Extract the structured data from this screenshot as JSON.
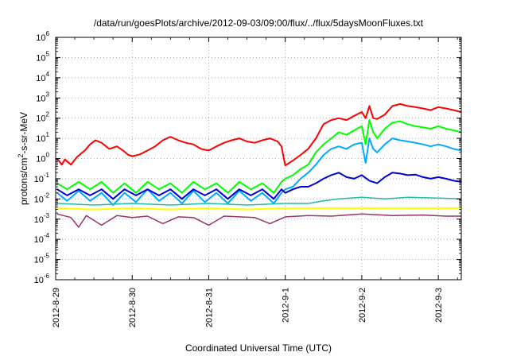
{
  "chart_data": {
    "type": "line",
    "title": "/data/run/goesPlots/archive/2012-09-03/09:00/flux/../flux/5daysMoonFluxes.txt",
    "xlabel": "Coordinated Universal Time (UTC)",
    "ylabel_base": "protons/cm",
    "ylabel_sup": "2",
    "ylabel_rest": "-s-sr-MeV",
    "yscale": "log",
    "ylim_exp": [
      -6,
      6
    ],
    "y_ticks": [
      {
        "exp": -6,
        "text": "-6"
      },
      {
        "exp": -5,
        "text": "-5"
      },
      {
        "exp": -4,
        "text": "-4"
      },
      {
        "exp": -3,
        "text": "-3"
      },
      {
        "exp": -2,
        "text": "-2"
      },
      {
        "exp": -1,
        "text": "-1"
      },
      {
        "exp": 0,
        "text": "0"
      },
      {
        "exp": 1,
        "text": "1"
      },
      {
        "exp": 2,
        "text": "2"
      },
      {
        "exp": 3,
        "text": "3"
      },
      {
        "exp": 4,
        "text": "4"
      },
      {
        "exp": 5,
        "text": "5"
      },
      {
        "exp": 6,
        "text": "6"
      }
    ],
    "y_tick_base": "10",
    "xlim_days": [
      0,
      5.3
    ],
    "x_ticks": [
      {
        "day": 0,
        "label": "2012-8-29"
      },
      {
        "day": 1,
        "label": "2012-8-30"
      },
      {
        "day": 2,
        "label": "2012-8-31"
      },
      {
        "day": 3,
        "label": "2012-9-1"
      },
      {
        "day": 4,
        "label": "2012-9-2"
      },
      {
        "day": 5,
        "label": "2012-9-3"
      }
    ],
    "series": [
      {
        "color": "#ff0000",
        "width": 2,
        "points": [
          [
            0.02,
            1.0
          ],
          [
            0.08,
            0.5
          ],
          [
            0.12,
            0.9
          ],
          [
            0.2,
            0.5
          ],
          [
            0.28,
            1.2
          ],
          [
            0.38,
            2.5
          ],
          [
            0.45,
            5.0
          ],
          [
            0.52,
            8.0
          ],
          [
            0.6,
            6.0
          ],
          [
            0.7,
            3.0
          ],
          [
            0.8,
            4.0
          ],
          [
            0.88,
            2.5
          ],
          [
            0.95,
            1.5
          ],
          [
            1.0,
            1.3
          ],
          [
            1.1,
            1.6
          ],
          [
            1.2,
            2.5
          ],
          [
            1.3,
            4.0
          ],
          [
            1.4,
            8.0
          ],
          [
            1.5,
            12.0
          ],
          [
            1.6,
            8.0
          ],
          [
            1.7,
            6.0
          ],
          [
            1.8,
            5.0
          ],
          [
            1.9,
            3.0
          ],
          [
            2.0,
            2.5
          ],
          [
            2.1,
            4.0
          ],
          [
            2.2,
            6.0
          ],
          [
            2.3,
            8.0
          ],
          [
            2.4,
            10.0
          ],
          [
            2.5,
            7.0
          ],
          [
            2.6,
            6.0
          ],
          [
            2.7,
            8.0
          ],
          [
            2.8,
            10.0
          ],
          [
            2.9,
            7.0
          ],
          [
            2.95,
            4.0
          ],
          [
            3.0,
            0.45
          ],
          [
            3.05,
            0.6
          ],
          [
            3.1,
            0.8
          ],
          [
            3.2,
            1.5
          ],
          [
            3.3,
            3.0
          ],
          [
            3.4,
            10.0
          ],
          [
            3.5,
            50.0
          ],
          [
            3.6,
            80.0
          ],
          [
            3.7,
            100.0
          ],
          [
            3.8,
            80.0
          ],
          [
            3.9,
            130.0
          ],
          [
            4.0,
            200.0
          ],
          [
            4.05,
            100.0
          ],
          [
            4.1,
            400.0
          ],
          [
            4.15,
            100.0
          ],
          [
            4.2,
            90.0
          ],
          [
            4.3,
            150.0
          ],
          [
            4.4,
            400.0
          ],
          [
            4.5,
            500.0
          ],
          [
            4.6,
            400.0
          ],
          [
            4.7,
            350.0
          ],
          [
            4.8,
            300.0
          ],
          [
            4.9,
            250.0
          ],
          [
            5.0,
            350.0
          ],
          [
            5.1,
            300.0
          ],
          [
            5.2,
            250.0
          ],
          [
            5.3,
            200.0
          ]
        ]
      },
      {
        "color": "#00ff00",
        "width": 2,
        "points": [
          [
            0.02,
            0.06
          ],
          [
            0.15,
            0.03
          ],
          [
            0.3,
            0.07
          ],
          [
            0.45,
            0.03
          ],
          [
            0.6,
            0.07
          ],
          [
            0.75,
            0.02
          ],
          [
            0.9,
            0.06
          ],
          [
            1.05,
            0.02
          ],
          [
            1.2,
            0.07
          ],
          [
            1.35,
            0.03
          ],
          [
            1.5,
            0.06
          ],
          [
            1.65,
            0.02
          ],
          [
            1.8,
            0.07
          ],
          [
            1.95,
            0.03
          ],
          [
            2.1,
            0.06
          ],
          [
            2.25,
            0.02
          ],
          [
            2.4,
            0.07
          ],
          [
            2.55,
            0.03
          ],
          [
            2.7,
            0.06
          ],
          [
            2.85,
            0.02
          ],
          [
            2.95,
            0.07
          ],
          [
            3.0,
            0.1
          ],
          [
            3.1,
            0.15
          ],
          [
            3.2,
            0.3
          ],
          [
            3.3,
            0.5
          ],
          [
            3.4,
            2.0
          ],
          [
            3.5,
            5.0
          ],
          [
            3.6,
            10.0
          ],
          [
            3.7,
            20.0
          ],
          [
            3.8,
            15.0
          ],
          [
            3.9,
            25.0
          ],
          [
            4.0,
            40.0
          ],
          [
            4.05,
            5.0
          ],
          [
            4.1,
            80.0
          ],
          [
            4.15,
            20.0
          ],
          [
            4.2,
            10.0
          ],
          [
            4.3,
            30.0
          ],
          [
            4.4,
            60.0
          ],
          [
            4.5,
            70.0
          ],
          [
            4.6,
            50.0
          ],
          [
            4.7,
            40.0
          ],
          [
            4.8,
            35.0
          ],
          [
            4.9,
            30.0
          ],
          [
            5.0,
            40.0
          ],
          [
            5.1,
            30.0
          ],
          [
            5.2,
            25.0
          ],
          [
            5.3,
            20.0
          ]
        ]
      },
      {
        "color": "#00aaff",
        "width": 2,
        "points": [
          [
            0.02,
            0.02
          ],
          [
            0.15,
            0.008
          ],
          [
            0.3,
            0.025
          ],
          [
            0.45,
            0.008
          ],
          [
            0.6,
            0.02
          ],
          [
            0.75,
            0.005
          ],
          [
            0.9,
            0.02
          ],
          [
            1.05,
            0.007
          ],
          [
            1.2,
            0.03
          ],
          [
            1.35,
            0.008
          ],
          [
            1.5,
            0.02
          ],
          [
            1.65,
            0.006
          ],
          [
            1.8,
            0.025
          ],
          [
            1.95,
            0.007
          ],
          [
            2.1,
            0.02
          ],
          [
            2.25,
            0.006
          ],
          [
            2.4,
            0.025
          ],
          [
            2.55,
            0.008
          ],
          [
            2.7,
            0.02
          ],
          [
            2.85,
            0.006
          ],
          [
            2.95,
            0.02
          ],
          [
            3.0,
            0.03
          ],
          [
            3.1,
            0.04
          ],
          [
            3.2,
            0.1
          ],
          [
            3.3,
            0.2
          ],
          [
            3.4,
            0.5
          ],
          [
            3.5,
            1.5
          ],
          [
            3.6,
            3.0
          ],
          [
            3.7,
            4.0
          ],
          [
            3.8,
            3.0
          ],
          [
            3.9,
            5.0
          ],
          [
            4.0,
            6.0
          ],
          [
            4.05,
            0.6
          ],
          [
            4.1,
            10.0
          ],
          [
            4.15,
            3.0
          ],
          [
            4.2,
            2.0
          ],
          [
            4.3,
            5.0
          ],
          [
            4.4,
            10.0
          ],
          [
            4.5,
            8.0
          ],
          [
            4.6,
            7.0
          ],
          [
            4.7,
            6.0
          ],
          [
            4.8,
            5.0
          ],
          [
            4.9,
            4.0
          ],
          [
            5.0,
            5.0
          ],
          [
            5.1,
            4.0
          ],
          [
            5.2,
            3.0
          ],
          [
            5.3,
            2.5
          ]
        ]
      },
      {
        "color": "#0000dd",
        "width": 2,
        "points": [
          [
            0.02,
            0.03
          ],
          [
            0.15,
            0.015
          ],
          [
            0.3,
            0.03
          ],
          [
            0.45,
            0.015
          ],
          [
            0.6,
            0.03
          ],
          [
            0.75,
            0.01
          ],
          [
            0.9,
            0.03
          ],
          [
            1.05,
            0.015
          ],
          [
            1.2,
            0.03
          ],
          [
            1.35,
            0.015
          ],
          [
            1.5,
            0.03
          ],
          [
            1.65,
            0.01
          ],
          [
            1.8,
            0.03
          ],
          [
            1.95,
            0.015
          ],
          [
            2.1,
            0.03
          ],
          [
            2.25,
            0.01
          ],
          [
            2.4,
            0.03
          ],
          [
            2.55,
            0.015
          ],
          [
            2.7,
            0.03
          ],
          [
            2.85,
            0.01
          ],
          [
            2.95,
            0.03
          ],
          [
            3.0,
            0.02
          ],
          [
            3.1,
            0.03
          ],
          [
            3.2,
            0.04
          ],
          [
            3.3,
            0.04
          ],
          [
            3.4,
            0.06
          ],
          [
            3.5,
            0.1
          ],
          [
            3.6,
            0.15
          ],
          [
            3.7,
            0.2
          ],
          [
            3.8,
            0.12
          ],
          [
            3.9,
            0.1
          ],
          [
            4.0,
            0.15
          ],
          [
            4.1,
            0.08
          ],
          [
            4.2,
            0.06
          ],
          [
            4.3,
            0.12
          ],
          [
            4.4,
            0.2
          ],
          [
            4.5,
            0.18
          ],
          [
            4.6,
            0.15
          ],
          [
            4.7,
            0.16
          ],
          [
            4.8,
            0.12
          ],
          [
            4.9,
            0.1
          ],
          [
            5.0,
            0.12
          ],
          [
            5.1,
            0.1
          ],
          [
            5.2,
            0.08
          ],
          [
            5.3,
            0.07
          ]
        ]
      },
      {
        "color": "#22bbaa",
        "width": 1.5,
        "points": [
          [
            0.02,
            0.006
          ],
          [
            0.5,
            0.005
          ],
          [
            1.0,
            0.006
          ],
          [
            1.5,
            0.005
          ],
          [
            2.0,
            0.006
          ],
          [
            2.5,
            0.005
          ],
          [
            3.0,
            0.006
          ],
          [
            3.3,
            0.006
          ],
          [
            3.5,
            0.008
          ],
          [
            3.7,
            0.01
          ],
          [
            4.0,
            0.012
          ],
          [
            4.3,
            0.01
          ],
          [
            4.6,
            0.012
          ],
          [
            5.0,
            0.011
          ],
          [
            5.3,
            0.01
          ]
        ]
      },
      {
        "color": "#ffff00",
        "width": 2,
        "points": [
          [
            0.02,
            0.0035
          ],
          [
            0.5,
            0.003
          ],
          [
            1.0,
            0.0035
          ],
          [
            1.5,
            0.003
          ],
          [
            2.0,
            0.0035
          ],
          [
            2.5,
            0.003
          ],
          [
            3.0,
            0.0035
          ],
          [
            3.5,
            0.0035
          ],
          [
            4.0,
            0.0035
          ],
          [
            4.5,
            0.0035
          ],
          [
            5.0,
            0.0035
          ],
          [
            5.3,
            0.0035
          ]
        ]
      },
      {
        "color": "#993366",
        "width": 1.5,
        "points": [
          [
            0.02,
            0.0018
          ],
          [
            0.2,
            0.0012
          ],
          [
            0.3,
            0.0004
          ],
          [
            0.4,
            0.0015
          ],
          [
            0.6,
            0.0005
          ],
          [
            0.8,
            0.0015
          ],
          [
            1.0,
            0.0012
          ],
          [
            1.2,
            0.0014
          ],
          [
            1.4,
            0.0006
          ],
          [
            1.6,
            0.0013
          ],
          [
            1.8,
            0.0012
          ],
          [
            2.0,
            0.0005
          ],
          [
            2.2,
            0.0014
          ],
          [
            2.4,
            0.0013
          ],
          [
            2.6,
            0.0012
          ],
          [
            2.8,
            0.0006
          ],
          [
            3.0,
            0.0013
          ],
          [
            3.3,
            0.0015
          ],
          [
            3.6,
            0.0014
          ],
          [
            4.0,
            0.0018
          ],
          [
            4.4,
            0.0015
          ],
          [
            4.8,
            0.0016
          ],
          [
            5.1,
            0.0014
          ],
          [
            5.3,
            0.0014
          ]
        ]
      }
    ]
  }
}
